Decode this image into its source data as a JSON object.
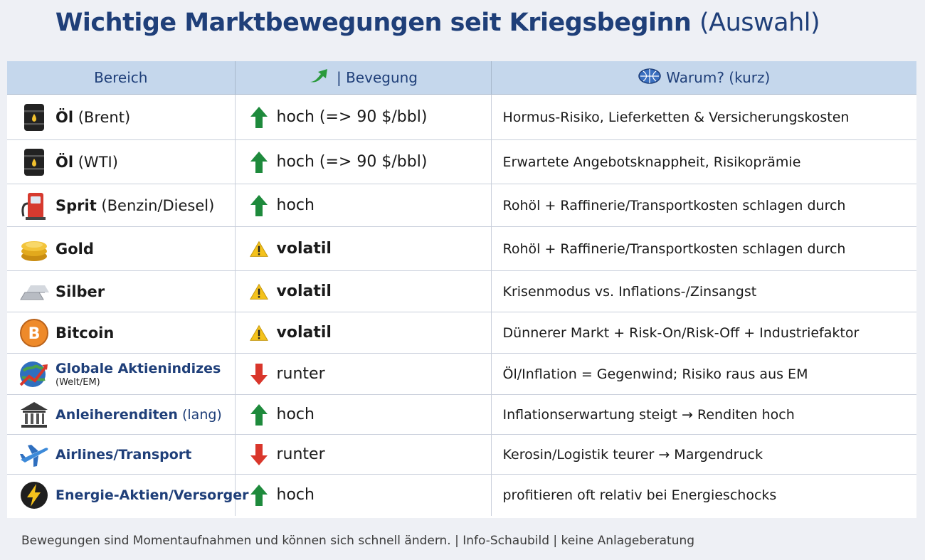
{
  "title": {
    "main": "Wichtige Marktbewegungen seit Kriegsbeginn",
    "suffix": "(Auswahl)"
  },
  "headers": {
    "bereich": "Bereich",
    "bewegung": "| Bevegung",
    "warum": "Warum? (kurz)"
  },
  "rows": [
    {
      "icon": "oil-barrel-icon",
      "name_bold": "Öl",
      "name_rest": " (Brent)",
      "sub": "",
      "movement": "up",
      "movement_label": "hoch (=> 90 $/bbl)",
      "reason": "Hormus-Risiko, Lieferketten & Versicherungskosten"
    },
    {
      "icon": "oil-barrel-icon",
      "name_bold": "Öl",
      "name_rest": " (WTI)",
      "sub": "",
      "movement": "up",
      "movement_label": "hoch (=> 90 $/bbl)",
      "reason": "Erwartete Angebotsknappheit, Risikoprämie"
    },
    {
      "icon": "fuel-pump-icon",
      "name_bold": "Sprit",
      "name_rest": " (Benzin/Diesel)",
      "sub": "",
      "movement": "up",
      "movement_label": "hoch",
      "reason": "Rohöl + Raffinerie/Transportkosten schlagen durch"
    },
    {
      "icon": "gold-coins-icon",
      "name_bold": "Gold",
      "name_rest": "",
      "sub": "",
      "movement": "warning",
      "movement_label": "volatil",
      "reason": "Rohöl + Raffinerie/Transportkosten schlagen durch"
    },
    {
      "icon": "silver-bars-icon",
      "name_bold": "Silber",
      "name_rest": "",
      "sub": "",
      "movement": "warning",
      "movement_label": "volatil",
      "reason": "Krisenmodus vs. Inflations-/Zinsangst"
    },
    {
      "icon": "bitcoin-icon",
      "name_bold": "Bitcoin",
      "name_rest": "",
      "sub": "",
      "movement": "warning",
      "movement_label": "volatil",
      "reason": "Dünnerer Markt + Risk-On/Risk-Off + Industriefaktor"
    },
    {
      "icon": "globe-chart-icon",
      "name_bold": "Globale Aktienindizes",
      "name_rest": "",
      "sub": "(Welt/EM)",
      "movement": "down",
      "movement_label": "runter",
      "reason": "Öl/Inflation = Gegenwind; Risiko raus aus EM"
    },
    {
      "icon": "bank-building-icon",
      "name_bold": "Anleiherenditen",
      "name_rest": " (lang)",
      "sub": "",
      "movement": "up",
      "movement_label": "hoch",
      "reason": "Inflationserwartung steigt → Renditen hoch"
    },
    {
      "icon": "airplane-icon",
      "name_bold": "Airlines/Transport",
      "name_rest": "",
      "sub": "",
      "movement": "down",
      "movement_label": "runter",
      "reason": "Kerosin/Logistik teurer → Margendruck"
    },
    {
      "icon": "lightning-icon",
      "name_bold": "Energie-Aktien/Versorger",
      "name_rest": "",
      "sub": "",
      "movement": "up",
      "movement_label": "hoch",
      "reason": "profitieren oft relativ bei Energieschocks"
    }
  ],
  "footer": "Bewegungen sind Momentaufnahmen und können sich schnell ändern. | Info-Schaubild | keine Anlageberatung",
  "colors": {
    "title": "#1f3f79",
    "header_bg": "#c5d7ec",
    "up": "#1e8a3c",
    "down": "#d9362b",
    "warning": "#f4c21c"
  }
}
